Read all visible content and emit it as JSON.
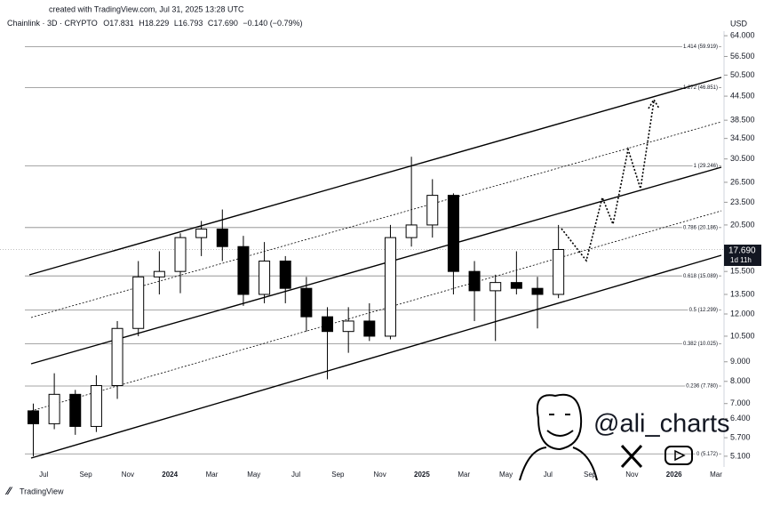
{
  "header": "created with TradingView.com, Jul 31, 2025 13:28 UTC",
  "chart_data": {
    "type": "candlestick",
    "title": "Chainlink · 3D · CRYPTO",
    "legend_values": [
      "O17.831",
      "H18.229",
      "L16.793",
      "C17.690",
      "−0.140 (−0.79%)"
    ],
    "currency": "USD",
    "log_scale": true,
    "x": [
      "2023-06",
      "2023-07",
      "2023-08",
      "2023-09",
      "2023-10",
      "2023-11",
      "2023-12",
      "2024-01",
      "2024-02",
      "2024-03",
      "2024-04",
      "2024-05",
      "2024-06",
      "2024-07",
      "2024-08",
      "2024-09",
      "2024-10",
      "2024-11",
      "2024-12",
      "2025-01",
      "2025-02",
      "2025-03",
      "2025-04",
      "2025-05",
      "2025-06",
      "2025-07"
    ],
    "open": [
      6.7,
      6.2,
      7.4,
      6.1,
      7.8,
      11.0,
      15.0,
      15.5,
      19.0,
      20.0,
      18.0,
      13.5,
      16.5,
      14.0,
      11.8,
      10.8,
      11.5,
      10.5,
      19.0,
      20.5,
      24.5,
      15.5,
      13.8,
      14.5,
      14.0,
      13.5
    ],
    "high": [
      7.0,
      8.4,
      7.6,
      8.3,
      11.5,
      16.5,
      17.5,
      19.5,
      21.0,
      22.5,
      19.2,
      18.5,
      17.0,
      15.0,
      12.5,
      12.5,
      12.8,
      20.5,
      30.9,
      27.0,
      24.8,
      16.5,
      15.2,
      17.5,
      15.0,
      20.5
    ],
    "low": [
      5.1,
      6.0,
      5.8,
      5.9,
      7.2,
      10.5,
      13.5,
      13.6,
      17.0,
      16.5,
      12.6,
      12.8,
      12.8,
      10.8,
      8.1,
      9.5,
      10.2,
      10.3,
      18.0,
      19.0,
      13.5,
      11.5,
      10.2,
      13.5,
      11.0,
      13.2
    ],
    "close": [
      6.2,
      7.4,
      6.1,
      7.8,
      11.0,
      15.0,
      15.5,
      19.0,
      20.0,
      18.0,
      13.5,
      16.5,
      14.0,
      11.8,
      10.8,
      11.5,
      10.5,
      19.0,
      20.5,
      24.5,
      15.5,
      13.8,
      14.5,
      14.0,
      13.5,
      17.69
    ],
    "xlim": [
      "2023-05",
      "2026-03"
    ],
    "xticks": [
      {
        "value": "2023-07",
        "label": "Jul"
      },
      {
        "value": "2023-09",
        "label": "Sep"
      },
      {
        "value": "2023-11",
        "label": "Nov"
      },
      {
        "value": "2024-01",
        "label": "2024"
      },
      {
        "value": "2024-03",
        "label": "Mar"
      },
      {
        "value": "2024-05",
        "label": "May"
      },
      {
        "value": "2024-07",
        "label": "Jul"
      },
      {
        "value": "2024-09",
        "label": "Sep"
      },
      {
        "value": "2024-11",
        "label": "Nov"
      },
      {
        "value": "2025-01",
        "label": "2025"
      },
      {
        "value": "2025-03",
        "label": "Mar"
      },
      {
        "value": "2025-05",
        "label": "May"
      },
      {
        "value": "2025-07",
        "label": "Jul"
      },
      {
        "value": "2025-09",
        "label": "Sep"
      },
      {
        "value": "2025-11",
        "label": "Nov"
      },
      {
        "value": "2026-01",
        "label": "2026"
      },
      {
        "value": "2026-03",
        "label": "Mar"
      }
    ],
    "ylim": [
      4.78,
      65.8
    ],
    "yticks": [
      {
        "value": 64,
        "label": "64.000"
      },
      {
        "value": 56.5,
        "label": "56.500"
      },
      {
        "value": 50.5,
        "label": "50.500"
      },
      {
        "value": 44.5,
        "label": "44.500"
      },
      {
        "value": 38.5,
        "label": "38.500"
      },
      {
        "value": 34.5,
        "label": "34.500"
      },
      {
        "value": 30.5,
        "label": "30.500"
      },
      {
        "value": 26.5,
        "label": "26.500"
      },
      {
        "value": 23.5,
        "label": "23.500"
      },
      {
        "value": 20.5,
        "label": "20.500"
      },
      {
        "value": 15.5,
        "label": "15.500"
      },
      {
        "value": 13.5,
        "label": "13.500"
      },
      {
        "value": 12,
        "label": "12.000"
      },
      {
        "value": 10.5,
        "label": "10.500"
      },
      {
        "value": 9,
        "label": "9.000"
      },
      {
        "value": 8,
        "label": "8.000"
      },
      {
        "value": 7,
        "label": "7.000"
      },
      {
        "value": 6.4,
        "label": "6.400"
      },
      {
        "value": 5.7,
        "label": "5.700"
      },
      {
        "value": 5.1,
        "label": "5.100"
      }
    ],
    "fib_levels": [
      {
        "price": 59.919,
        "label": "1.414 (59.919)"
      },
      {
        "price": 46.851,
        "label": "1.272 (46.851)"
      },
      {
        "price": 29.246,
        "label": "1 (29.246)"
      },
      {
        "price": 20.186,
        "label": "0.786 (20.186)"
      },
      {
        "price": 15.089,
        "label": "0.618 (15.089)"
      },
      {
        "price": 12.299,
        "label": "0.5 (12.299)"
      },
      {
        "price": 10.025,
        "label": "0.382 (10.025)"
      },
      {
        "price": 7.78,
        "label": "0.236 (7.780)"
      },
      {
        "price": 5.172,
        "label": "0 (5.172)"
      }
    ],
    "last_price": {
      "value": 17.69,
      "label": "17.690"
    },
    "countdown": "1d 11h"
  },
  "watermark": "@ali_charts",
  "footer": "TradingView"
}
